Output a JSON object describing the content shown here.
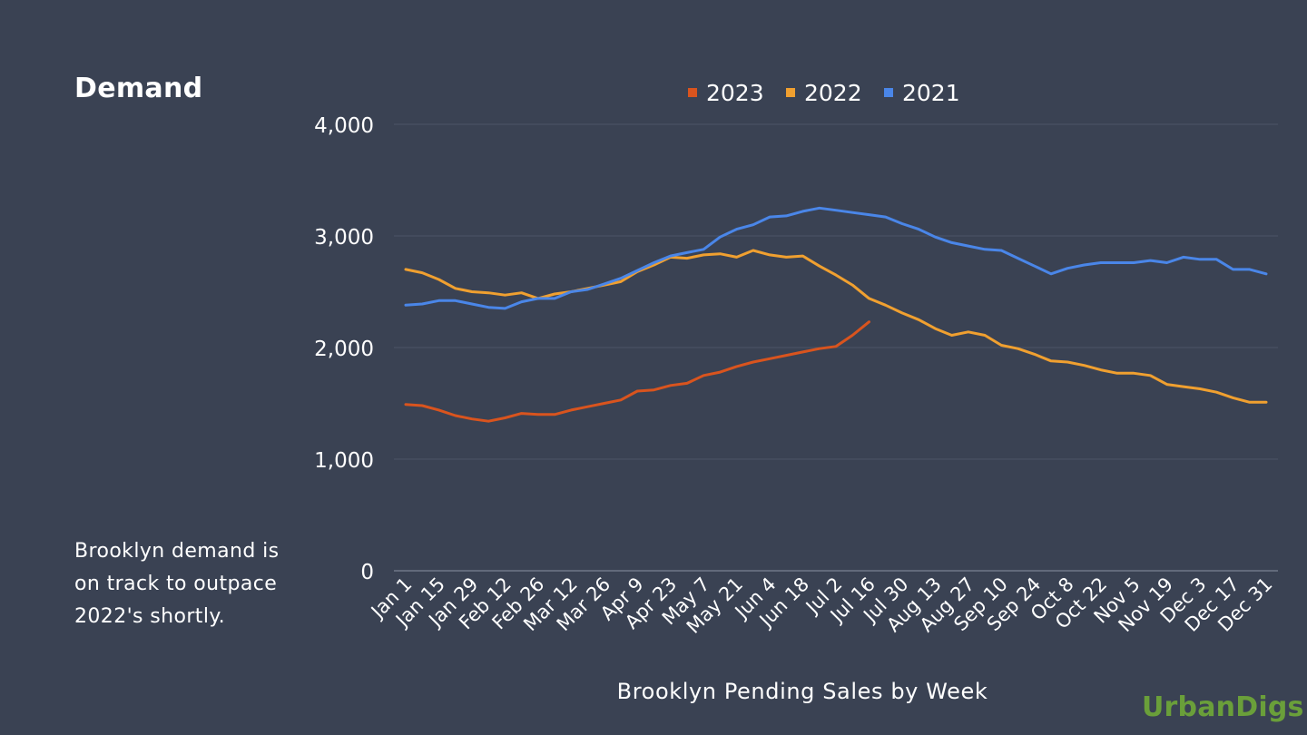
{
  "page": {
    "title": "Demand",
    "note": "Brooklyn demand is on track to outpace 2022's shortly.",
    "brand": "UrbanDigs"
  },
  "colors": {
    "background": "#3a4253",
    "gridline": "#4c5467",
    "axis": "#8a92a3",
    "brand": "#6a9f3a"
  },
  "chart_data": {
    "type": "line",
    "title": "",
    "xlabel": "Brooklyn Pending Sales by Week",
    "ylabel": "",
    "ylim": [
      0,
      4000
    ],
    "yticks": [
      0,
      1000,
      2000,
      3000,
      4000
    ],
    "ytick_labels": [
      "0",
      "1,000",
      "2,000",
      "3,000",
      "4,000"
    ],
    "grid": true,
    "legend_position": "top",
    "x_tick_labels": [
      "Jan 1",
      "Jan 15",
      "Jan 29",
      "Feb 12",
      "Feb 26",
      "Mar 12",
      "Mar 26",
      "Apr 9",
      "Apr 23",
      "May 7",
      "May 21",
      "Jun 4",
      "Jun 18",
      "Jul 2",
      "Jul 16",
      "Jul 30",
      "Aug 13",
      "Aug 27",
      "Sep 10",
      "Sep 24",
      "Oct 8",
      "Oct 22",
      "Nov 5",
      "Nov 19",
      "Dec 3",
      "Dec 17",
      "Dec 31"
    ],
    "series": [
      {
        "name": "2023",
        "color": "#d9541e",
        "values": [
          1490,
          1480,
          1440,
          1390,
          1360,
          1340,
          1370,
          1410,
          1400,
          1400,
          1440,
          1470,
          1500,
          1530,
          1610,
          1620,
          1660,
          1680,
          1750,
          1780,
          1830,
          1870,
          1900,
          1930,
          1960,
          1990,
          2010,
          2110,
          2230
        ]
      },
      {
        "name": "2022",
        "color": "#f0a030",
        "values": [
          2700,
          2670,
          2610,
          2530,
          2500,
          2490,
          2470,
          2490,
          2440,
          2480,
          2500,
          2530,
          2560,
          2590,
          2680,
          2740,
          2810,
          2800,
          2830,
          2840,
          2810,
          2870,
          2830,
          2810,
          2820,
          2730,
          2650,
          2560,
          2440,
          2380,
          2310,
          2250,
          2170,
          2110,
          2140,
          2110,
          2020,
          1990,
          1940,
          1880,
          1870,
          1840,
          1800,
          1770,
          1770,
          1750,
          1670,
          1650,
          1630,
          1600,
          1550,
          1510,
          1510
        ]
      },
      {
        "name": "2021",
        "color": "#4a86e8",
        "values": [
          2380,
          2390,
          2420,
          2420,
          2390,
          2360,
          2350,
          2410,
          2440,
          2440,
          2500,
          2520,
          2570,
          2620,
          2690,
          2760,
          2820,
          2850,
          2880,
          2990,
          3060,
          3100,
          3170,
          3180,
          3220,
          3250,
          3230,
          3210,
          3190,
          3170,
          3110,
          3060,
          2990,
          2940,
          2910,
          2880,
          2870,
          2800,
          2730,
          2660,
          2710,
          2740,
          2760,
          2760,
          2760,
          2780,
          2760,
          2810,
          2790,
          2790,
          2700,
          2700,
          2660
        ]
      }
    ]
  }
}
